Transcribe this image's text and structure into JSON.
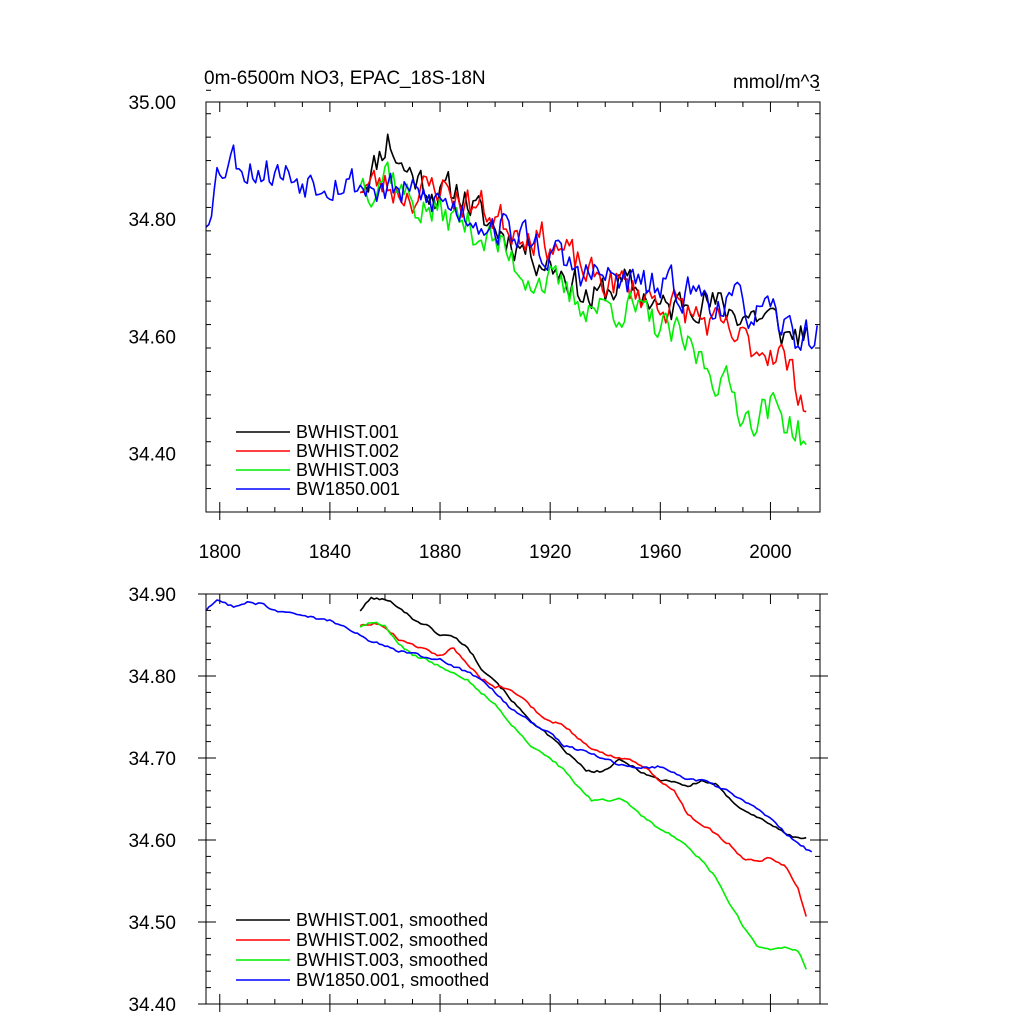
{
  "chart_data": [
    {
      "type": "line",
      "title_left": "0m-6500m NO3, EPAC_18S-18N",
      "title_right": "mmol/m^3",
      "xlabel": "",
      "ylabel": "",
      "xlim": [
        1795,
        2018
      ],
      "ylim": [
        34.3,
        35.0
      ],
      "x_ticks": [
        1800,
        1840,
        1880,
        1920,
        1960,
        2000
      ],
      "x_tick_labels": [
        "1800",
        "1840",
        "1880",
        "1920",
        "1960",
        "2000"
      ],
      "y_ticks": [
        34.4,
        34.6,
        34.8,
        35.0
      ],
      "y_tick_labels": [
        "34.40",
        "34.60",
        "34.80",
        "35.00"
      ],
      "legend": "bottom-left",
      "noise_amp": 0.028,
      "series": [
        {
          "name": "BWHIST.001",
          "color": "#000000",
          "seed": 11,
          "anchors": [
            [
              1851,
              34.86
            ],
            [
              1856,
              34.89
            ],
            [
              1861,
              34.94
            ],
            [
              1866,
              34.89
            ],
            [
              1872,
              34.87
            ],
            [
              1880,
              34.84
            ],
            [
              1887,
              34.85
            ],
            [
              1895,
              34.8
            ],
            [
              1905,
              34.77
            ],
            [
              1915,
              34.74
            ],
            [
              1925,
              34.71
            ],
            [
              1935,
              34.66
            ],
            [
              1945,
              34.69
            ],
            [
              1955,
              34.67
            ],
            [
              1962,
              34.64
            ],
            [
              1972,
              34.67
            ],
            [
              1980,
              34.65
            ],
            [
              1990,
              34.64
            ],
            [
              2000,
              34.63
            ],
            [
              2006,
              34.6
            ],
            [
              2013,
              34.61
            ]
          ]
        },
        {
          "name": "BWHIST.002",
          "color": "#ff0000",
          "seed": 23,
          "anchors": [
            [
              1851,
              34.86
            ],
            [
              1858,
              34.86
            ],
            [
              1865,
              34.85
            ],
            [
              1872,
              34.84
            ],
            [
              1880,
              34.86
            ],
            [
              1888,
              34.83
            ],
            [
              1895,
              34.82
            ],
            [
              1905,
              34.79
            ],
            [
              1912,
              34.78
            ],
            [
              1920,
              34.76
            ],
            [
              1928,
              34.73
            ],
            [
              1935,
              34.7
            ],
            [
              1945,
              34.69
            ],
            [
              1955,
              34.67
            ],
            [
              1965,
              34.65
            ],
            [
              1975,
              34.63
            ],
            [
              1985,
              34.6
            ],
            [
              1995,
              34.58
            ],
            [
              2003,
              34.58
            ],
            [
              2008,
              34.53
            ],
            [
              2013,
              34.49
            ]
          ]
        },
        {
          "name": "BWHIST.003",
          "color": "#00ee00",
          "seed": 37,
          "anchors": [
            [
              1851,
              34.87
            ],
            [
              1856,
              34.86
            ],
            [
              1861,
              34.89
            ],
            [
              1866,
              34.85
            ],
            [
              1872,
              34.82
            ],
            [
              1880,
              34.81
            ],
            [
              1890,
              34.79
            ],
            [
              1900,
              34.76
            ],
            [
              1910,
              34.71
            ],
            [
              1920,
              34.69
            ],
            [
              1930,
              34.66
            ],
            [
              1938,
              34.65
            ],
            [
              1948,
              34.65
            ],
            [
              1958,
              34.62
            ],
            [
              1965,
              34.6
            ],
            [
              1975,
              34.56
            ],
            [
              1985,
              34.51
            ],
            [
              1992,
              34.46
            ],
            [
              2000,
              34.48
            ],
            [
              2008,
              34.45
            ],
            [
              2013,
              34.42
            ]
          ]
        },
        {
          "name": "BW1850.001",
          "color": "#0000ff",
          "seed": 53,
          "anchors": [
            [
              1795,
              34.8
            ],
            [
              1799,
              34.88
            ],
            [
              1804,
              34.91
            ],
            [
              1810,
              34.89
            ],
            [
              1820,
              34.88
            ],
            [
              1830,
              34.87
            ],
            [
              1840,
              34.87
            ],
            [
              1850,
              34.86
            ],
            [
              1860,
              34.85
            ],
            [
              1870,
              34.84
            ],
            [
              1880,
              34.83
            ],
            [
              1890,
              34.81
            ],
            [
              1900,
              34.79
            ],
            [
              1910,
              34.77
            ],
            [
              1920,
              34.74
            ],
            [
              1930,
              34.71
            ],
            [
              1940,
              34.7
            ],
            [
              1950,
              34.69
            ],
            [
              1960,
              34.68
            ],
            [
              1970,
              34.68
            ],
            [
              1980,
              34.66
            ],
            [
              1990,
              34.65
            ],
            [
              2000,
              34.63
            ],
            [
              2010,
              34.6
            ],
            [
              2017,
              34.6
            ]
          ]
        }
      ]
    },
    {
      "type": "line",
      "xlim": [
        1795,
        2018
      ],
      "ylim": [
        34.4,
        34.9
      ],
      "x_ticks": [
        1800,
        1840,
        1880,
        1920,
        1960,
        2000
      ],
      "y_ticks": [
        34.4,
        34.5,
        34.6,
        34.7,
        34.8,
        34.9
      ],
      "y_tick_labels": [
        "34.40",
        "34.50",
        "34.60",
        "34.70",
        "34.80",
        "34.90"
      ],
      "legend": "bottom-left",
      "noise_amp": 0.0025,
      "series": [
        {
          "name": "BWHIST.001, smoothed",
          "color": "#000000",
          "seed": 101,
          "anchors": [
            [
              1851,
              34.88
            ],
            [
              1855,
              34.895
            ],
            [
              1860,
              34.893
            ],
            [
              1865,
              34.885
            ],
            [
              1870,
              34.87
            ],
            [
              1875,
              34.862
            ],
            [
              1880,
              34.85
            ],
            [
              1885,
              34.848
            ],
            [
              1890,
              34.835
            ],
            [
              1895,
              34.81
            ],
            [
              1900,
              34.795
            ],
            [
              1905,
              34.775
            ],
            [
              1910,
              34.755
            ],
            [
              1915,
              34.74
            ],
            [
              1920,
              34.725
            ],
            [
              1925,
              34.71
            ],
            [
              1930,
              34.694
            ],
            [
              1933,
              34.685
            ],
            [
              1936,
              34.682
            ],
            [
              1940,
              34.685
            ],
            [
              1945,
              34.697
            ],
            [
              1950,
              34.69
            ],
            [
              1955,
              34.68
            ],
            [
              1960,
              34.673
            ],
            [
              1965,
              34.672
            ],
            [
              1970,
              34.665
            ],
            [
              1975,
              34.672
            ],
            [
              1980,
              34.668
            ],
            [
              1985,
              34.65
            ],
            [
              1990,
              34.638
            ],
            [
              1995,
              34.628
            ],
            [
              2000,
              34.62
            ],
            [
              2005,
              34.608
            ],
            [
              2010,
              34.602
            ],
            [
              2013,
              34.603
            ]
          ]
        },
        {
          "name": "BWHIST.002, smoothed",
          "color": "#ff0000",
          "seed": 202,
          "anchors": [
            [
              1851,
              34.862
            ],
            [
              1856,
              34.865
            ],
            [
              1860,
              34.86
            ],
            [
              1865,
              34.845
            ],
            [
              1870,
              34.838
            ],
            [
              1875,
              34.832
            ],
            [
              1880,
              34.825
            ],
            [
              1885,
              34.834
            ],
            [
              1890,
              34.815
            ],
            [
              1895,
              34.797
            ],
            [
              1900,
              34.787
            ],
            [
              1905,
              34.785
            ],
            [
              1910,
              34.772
            ],
            [
              1915,
              34.757
            ],
            [
              1920,
              34.745
            ],
            [
              1925,
              34.74
            ],
            [
              1930,
              34.725
            ],
            [
              1935,
              34.71
            ],
            [
              1940,
              34.705
            ],
            [
              1945,
              34.7
            ],
            [
              1950,
              34.697
            ],
            [
              1955,
              34.687
            ],
            [
              1960,
              34.672
            ],
            [
              1965,
              34.662
            ],
            [
              1970,
              34.63
            ],
            [
              1975,
              34.62
            ],
            [
              1980,
              34.608
            ],
            [
              1985,
              34.595
            ],
            [
              1990,
              34.578
            ],
            [
              1995,
              34.575
            ],
            [
              2000,
              34.578
            ],
            [
              2005,
              34.57
            ],
            [
              2010,
              34.542
            ],
            [
              2013,
              34.508
            ]
          ]
        },
        {
          "name": "BWHIST.003, smoothed",
          "color": "#00ee00",
          "seed": 303,
          "anchors": [
            [
              1851,
              34.86
            ],
            [
              1856,
              34.866
            ],
            [
              1860,
              34.86
            ],
            [
              1865,
              34.84
            ],
            [
              1870,
              34.825
            ],
            [
              1875,
              34.82
            ],
            [
              1880,
              34.812
            ],
            [
              1885,
              34.805
            ],
            [
              1890,
              34.795
            ],
            [
              1895,
              34.78
            ],
            [
              1900,
              34.765
            ],
            [
              1905,
              34.745
            ],
            [
              1910,
              34.725
            ],
            [
              1915,
              34.71
            ],
            [
              1920,
              34.7
            ],
            [
              1925,
              34.685
            ],
            [
              1930,
              34.665
            ],
            [
              1935,
              34.648
            ],
            [
              1940,
              34.648
            ],
            [
              1945,
              34.65
            ],
            [
              1950,
              34.64
            ],
            [
              1955,
              34.625
            ],
            [
              1960,
              34.612
            ],
            [
              1965,
              34.605
            ],
            [
              1970,
              34.592
            ],
            [
              1975,
              34.575
            ],
            [
              1980,
              34.555
            ],
            [
              1985,
              34.525
            ],
            [
              1990,
              34.495
            ],
            [
              1995,
              34.47
            ],
            [
              2000,
              34.467
            ],
            [
              2005,
              34.47
            ],
            [
              2010,
              34.465
            ],
            [
              2013,
              34.444
            ]
          ]
        },
        {
          "name": "BW1850.001, smoothed",
          "color": "#0000ff",
          "seed": 404,
          "anchors": [
            [
              1795,
              34.88
            ],
            [
              1799,
              34.892
            ],
            [
              1805,
              34.885
            ],
            [
              1810,
              34.89
            ],
            [
              1815,
              34.888
            ],
            [
              1820,
              34.88
            ],
            [
              1825,
              34.877
            ],
            [
              1830,
              34.874
            ],
            [
              1835,
              34.87
            ],
            [
              1840,
              34.868
            ],
            [
              1845,
              34.86
            ],
            [
              1850,
              34.852
            ],
            [
              1855,
              34.842
            ],
            [
              1860,
              34.837
            ],
            [
              1865,
              34.83
            ],
            [
              1870,
              34.828
            ],
            [
              1875,
              34.822
            ],
            [
              1880,
              34.82
            ],
            [
              1885,
              34.812
            ],
            [
              1890,
              34.805
            ],
            [
              1895,
              34.795
            ],
            [
              1900,
              34.78
            ],
            [
              1905,
              34.762
            ],
            [
              1910,
              34.753
            ],
            [
              1915,
              34.74
            ],
            [
              1920,
              34.73
            ],
            [
              1925,
              34.715
            ],
            [
              1930,
              34.71
            ],
            [
              1935,
              34.705
            ],
            [
              1940,
              34.698
            ],
            [
              1945,
              34.692
            ],
            [
              1950,
              34.69
            ],
            [
              1955,
              34.688
            ],
            [
              1960,
              34.69
            ],
            [
              1965,
              34.683
            ],
            [
              1970,
              34.675
            ],
            [
              1975,
              34.672
            ],
            [
              1980,
              34.666
            ],
            [
              1985,
              34.66
            ],
            [
              1990,
              34.648
            ],
            [
              1995,
              34.638
            ],
            [
              2000,
              34.625
            ],
            [
              2005,
              34.61
            ],
            [
              2010,
              34.595
            ],
            [
              2015,
              34.585
            ]
          ]
        }
      ]
    }
  ]
}
